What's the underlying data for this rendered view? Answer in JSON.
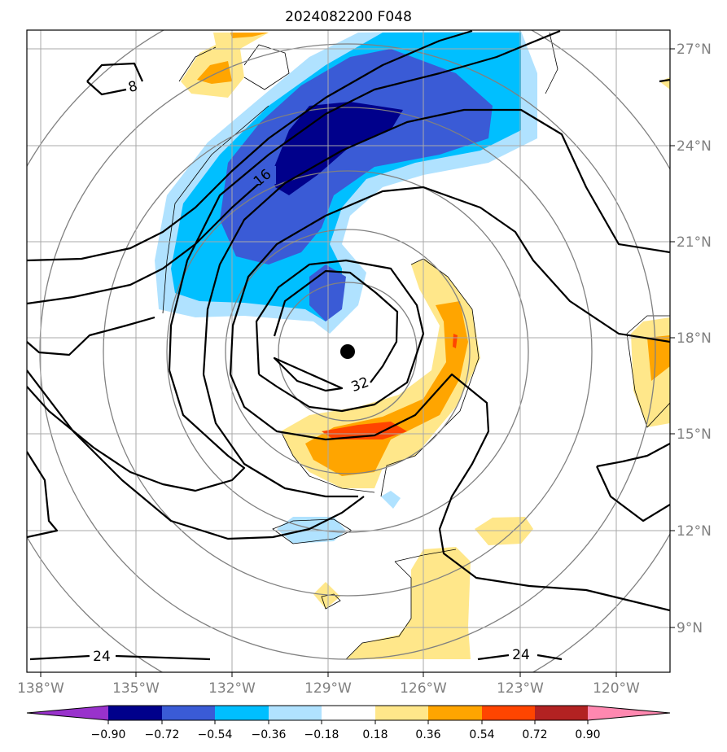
{
  "title": "2024082200 F048",
  "x_ticks": [
    "138°W",
    "135°W",
    "132°W",
    "129°W",
    "126°W",
    "123°W",
    "120°W"
  ],
  "y_ticks": [
    "27°N",
    "24°N",
    "21°N",
    "18°N",
    "15°N",
    "12°N",
    "9°N"
  ],
  "colorbar": {
    "labels": [
      "−0.90",
      "−0.72",
      "−0.54",
      "−0.36",
      "−0.18",
      "0.18",
      "0.36",
      "0.54",
      "0.72",
      "0.90"
    ],
    "colors": [
      "#9932cc",
      "#00008b",
      "#3a5bd6",
      "#00bfff",
      "#b0e2ff",
      "#ffffff",
      "#ffe78a",
      "#ffa500",
      "#ff4500",
      "#b22222",
      "#ff88b0"
    ]
  },
  "contour_labels": [
    "8",
    "16",
    "32",
    "24",
    "24"
  ],
  "center_marker": "black-dot"
}
